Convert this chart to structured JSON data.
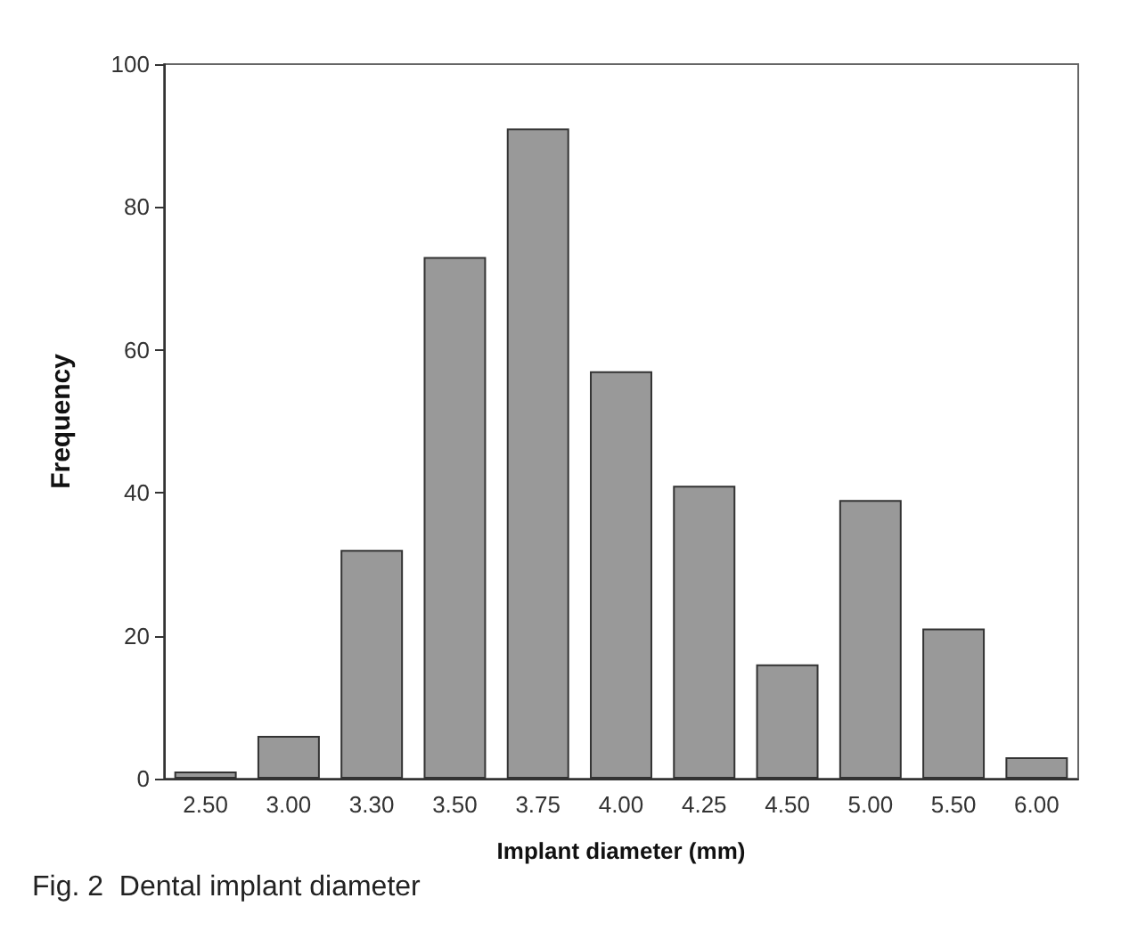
{
  "chart_data": {
    "type": "bar",
    "xlabel": "Implant diameter (mm)",
    "ylabel": "Frequency",
    "annotations": [
      "Fig. 2  Dental implant diameter"
    ],
    "categories": [
      "2.50",
      "3.00",
      "3.30",
      "3.50",
      "3.75",
      "4.00",
      "4.25",
      "4.50",
      "5.00",
      "5.50",
      "6.00"
    ],
    "values": [
      1,
      6,
      32,
      73,
      91,
      57,
      41,
      16,
      39,
      21,
      3
    ],
    "color": "#999999",
    "ylim": [
      0,
      100
    ],
    "yticks": [
      0,
      20,
      40,
      60,
      80,
      100
    ],
    "grid": false
  }
}
